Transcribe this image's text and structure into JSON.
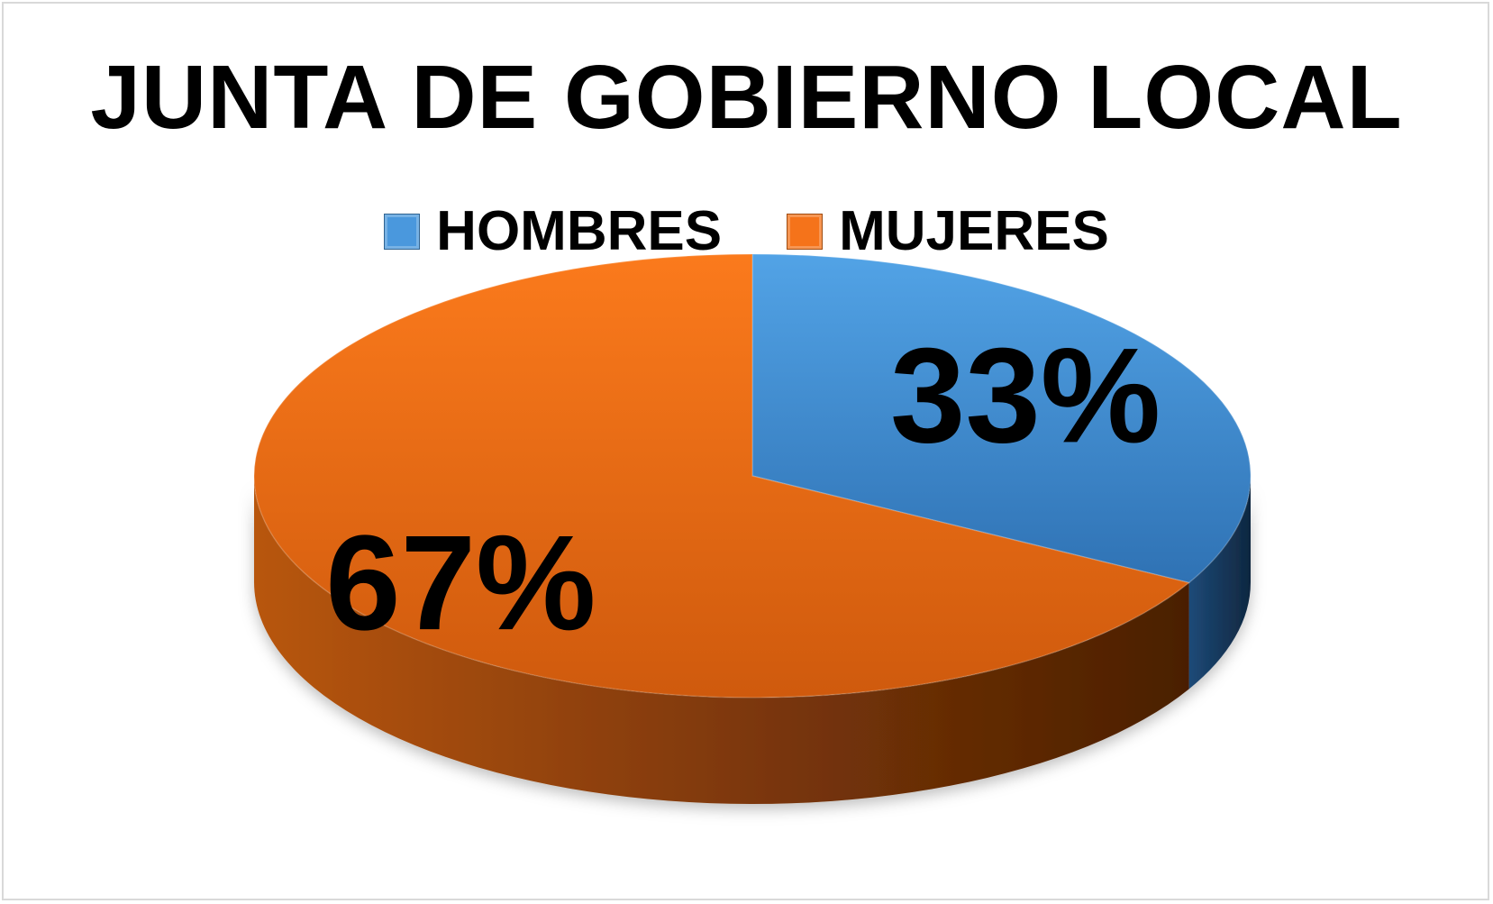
{
  "chart_data": {
    "type": "pie",
    "title": "JUNTA DE GOBIERNO LOCAL",
    "categories": [
      "HOMBRES",
      "MUJERES"
    ],
    "values": [
      33,
      67
    ],
    "data_labels": [
      "33%",
      "67%"
    ],
    "legend_placement": "top",
    "style": "3d",
    "colors": [
      "#4a98dd",
      "#f5731a"
    ]
  }
}
